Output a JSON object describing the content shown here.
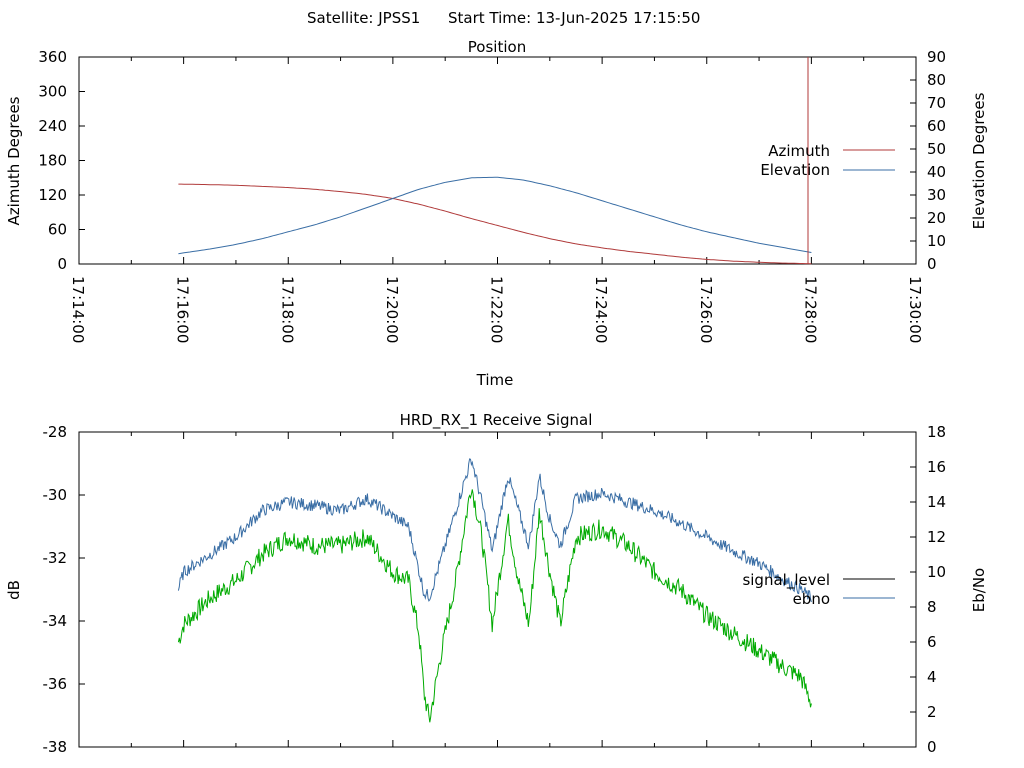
{
  "header": {
    "satellite_label": "Satellite: JPSS1",
    "start_time_label": "Start Time: 13-Jun-2025 17:15:50"
  },
  "colors": {
    "azimuth": "#b03a3a",
    "elevation": "#3a6ea5",
    "signal_level": "#000000",
    "ebno": "#3a6ea5",
    "green_trace": "#00aa00"
  },
  "chart_data": [
    {
      "type": "line",
      "title": "Position",
      "xlabel": "Time",
      "ylabel": "Azimuth Degrees",
      "y2label": "Elevation Degrees",
      "xlim_minutes_after_17_00": [
        14,
        30
      ],
      "x_ticks": [
        "17:14:00",
        "17:16:00",
        "17:18:00",
        "17:20:00",
        "17:22:00",
        "17:24:00",
        "17:26:00",
        "17:28:00",
        "17:30:00"
      ],
      "ylim": [
        0,
        360
      ],
      "y_ticks": [
        "0",
        "60",
        "120",
        "180",
        "240",
        "300",
        "360"
      ],
      "y2lim": [
        0,
        90
      ],
      "y2_ticks": [
        "0",
        "10",
        "20",
        "30",
        "40",
        "50",
        "60",
        "70",
        "80",
        "90"
      ],
      "legend": "right",
      "series": [
        {
          "name": "Azimuth",
          "axis": "y",
          "x": [
            15.9,
            16.5,
            17,
            17.5,
            18,
            18.5,
            19,
            19.5,
            20,
            20.5,
            21,
            21.5,
            22,
            22.5,
            23,
            23.5,
            24,
            24.5,
            25,
            25.5,
            26,
            26.5,
            27,
            27.5,
            28
          ],
          "values": [
            139,
            138,
            137,
            135,
            133,
            130,
            126,
            121,
            114,
            104,
            92,
            79,
            67,
            55,
            44,
            35,
            28,
            22,
            17,
            12,
            8,
            5,
            3,
            1.5,
            0.5
          ]
        },
        {
          "name": "Elevation",
          "axis": "y2",
          "x": [
            15.9,
            16.5,
            17,
            17.5,
            18,
            18.5,
            19,
            19.5,
            20,
            20.5,
            21,
            21.5,
            22,
            22.5,
            23,
            23.5,
            24,
            24.5,
            25,
            25.5,
            26,
            26.5,
            27,
            27.5,
            28
          ],
          "values": [
            4.5,
            6.5,
            8.5,
            11,
            14,
            17,
            20.5,
            24.5,
            28.5,
            32.5,
            35.5,
            37.5,
            37.7,
            36.5,
            34,
            31,
            27.5,
            24,
            20.5,
            17,
            14,
            11.5,
            9,
            7,
            5
          ]
        }
      ]
    },
    {
      "type": "line",
      "title": "HRD_RX_1 Receive Signal",
      "ylabel": "dB",
      "y2label": "Eb/No",
      "xlim_minutes_after_17_00": [
        14,
        30
      ],
      "ylim": [
        -38,
        -28
      ],
      "y_ticks": [
        "-38",
        "-36",
        "-34",
        "-32",
        "-30",
        "-28"
      ],
      "y2lim": [
        0,
        18
      ],
      "y2_ticks": [
        "0",
        "2",
        "4",
        "6",
        "8",
        "10",
        "12",
        "14",
        "16",
        "18"
      ],
      "legend": "right",
      "series": [
        {
          "name": "signal_level",
          "axis": "y",
          "x": [],
          "values": []
        },
        {
          "name": "ebno",
          "axis": "y2",
          "x": [
            15.9,
            16.0,
            16.5,
            17.0,
            17.5,
            18.0,
            18.5,
            19.0,
            19.5,
            20.0,
            20.3,
            20.6,
            20.7,
            20.9,
            21.2,
            21.5,
            21.7,
            21.9,
            22.2,
            22.4,
            22.6,
            22.8,
            23.0,
            23.2,
            23.5,
            24.0,
            24.5,
            25.0,
            25.5,
            26.0,
            26.5,
            27.0,
            27.5,
            27.8,
            28.0
          ],
          "values": [
            9.0,
            10.0,
            11.0,
            12.0,
            13.5,
            14.0,
            13.8,
            13.5,
            14.2,
            13.2,
            12.6,
            8.8,
            8.6,
            10.5,
            13.5,
            16.5,
            14.0,
            11.2,
            15.5,
            13.5,
            11.5,
            15.5,
            13.0,
            11.5,
            14.2,
            14.5,
            14.0,
            13.5,
            12.8,
            12.0,
            11.2,
            10.5,
            9.5,
            9.0,
            8.5
          ]
        },
        {
          "name": "",
          "axis": "y2",
          "x": [
            15.9,
            16.0,
            16.5,
            17.0,
            17.5,
            18.0,
            18.5,
            19.0,
            19.5,
            20.0,
            20.3,
            20.5,
            20.6,
            20.7,
            20.9,
            21.2,
            21.5,
            21.7,
            21.9,
            22.2,
            22.4,
            22.6,
            22.8,
            23.0,
            23.2,
            23.5,
            24.0,
            24.5,
            25.0,
            25.5,
            26.0,
            26.5,
            27.0,
            27.5,
            27.8,
            28.0
          ],
          "values": [
            6.0,
            7.0,
            8.5,
            9.5,
            11.0,
            12.0,
            11.5,
            11.5,
            12.0,
            10.0,
            9.5,
            6.5,
            3.0,
            1.5,
            5.0,
            9.5,
            15.0,
            12.0,
            7.0,
            13.0,
            9.5,
            7.0,
            13.5,
            10.0,
            7.0,
            12.0,
            12.5,
            11.5,
            10.0,
            9.0,
            7.5,
            6.5,
            5.5,
            4.5,
            4.0,
            2.5
          ]
        }
      ]
    }
  ]
}
